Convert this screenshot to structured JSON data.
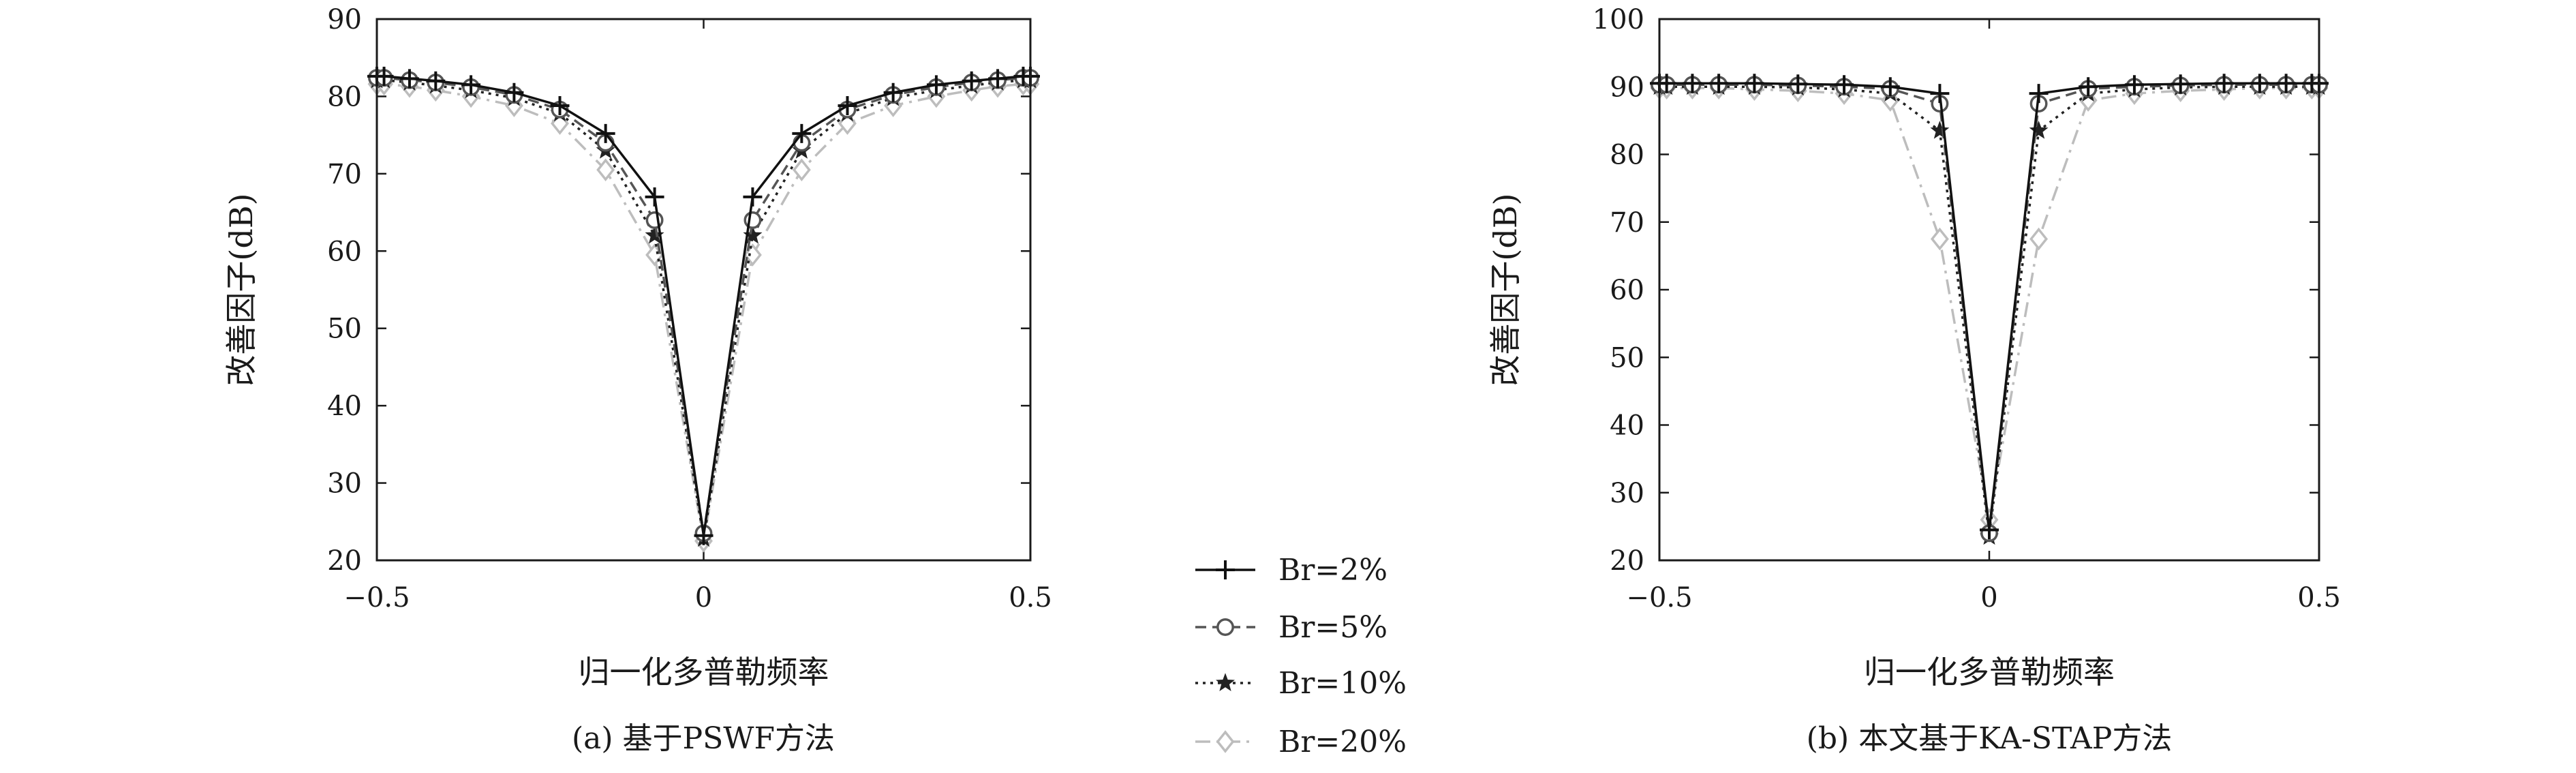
{
  "chart_data": [
    {
      "type": "line",
      "caption": "(a) 基于PSWF方法",
      "xlabel": "归一化多普勒频率",
      "ylabel": "改善因子(dB)",
      "xlim": [
        -0.5,
        0.5
      ],
      "ylim": [
        20,
        90
      ],
      "xticks": [
        -0.5,
        0,
        0.5
      ],
      "xtick_labels": [
        "−0.5",
        "0",
        "0.5"
      ],
      "yticks": [
        20,
        30,
        40,
        50,
        60,
        70,
        80,
        90
      ],
      "ytick_labels": [
        "20",
        "30",
        "40",
        "50",
        "60",
        "70",
        "80",
        "90"
      ],
      "grid": false,
      "x": [
        -0.5,
        -0.489,
        -0.45,
        -0.41,
        -0.356,
        -0.29,
        -0.22,
        -0.15,
        -0.075,
        0,
        0.075,
        0.15,
        0.22,
        0.29,
        0.356,
        0.41,
        0.45,
        0.489,
        0.5
      ],
      "series": [
        {
          "name": "Br=2%",
          "values": [
            82.6,
            82.6,
            82.3,
            82.0,
            81.5,
            80.5,
            78.8,
            75.2,
            67.0,
            23.2,
            67.0,
            75.2,
            78.8,
            80.5,
            81.5,
            82.0,
            82.3,
            82.6,
            82.6
          ]
        },
        {
          "name": "Br=5%",
          "values": [
            82.4,
            82.4,
            82.1,
            81.8,
            81.2,
            80.2,
            78.3,
            74.0,
            64.0,
            23.5,
            64.0,
            74.0,
            78.3,
            80.2,
            81.2,
            81.8,
            82.1,
            82.4,
            82.4
          ]
        },
        {
          "name": "Br=10%",
          "values": [
            82.1,
            82.1,
            81.8,
            81.4,
            80.8,
            79.8,
            77.8,
            73.0,
            62.0,
            22.8,
            62.0,
            73.0,
            77.8,
            79.8,
            80.8,
            81.4,
            81.8,
            82.1,
            82.1
          ]
        },
        {
          "name": "Br=20%",
          "values": [
            81.6,
            81.6,
            81.3,
            80.8,
            80.0,
            78.8,
            76.5,
            70.5,
            59.5,
            22.5,
            59.5,
            70.5,
            76.5,
            78.8,
            80.0,
            80.8,
            81.3,
            81.6,
            81.6
          ]
        }
      ]
    },
    {
      "type": "line",
      "caption": "(b) 本文基于KA-STAP方法",
      "xlabel": "归一化多普勒频率",
      "ylabel": "改善因子(dB)",
      "xlim": [
        -0.5,
        0.5
      ],
      "ylim": [
        20,
        100
      ],
      "xticks": [
        -0.5,
        0,
        0.5
      ],
      "xtick_labels": [
        "−0.5",
        "0",
        "0.5"
      ],
      "yticks": [
        20,
        30,
        40,
        50,
        60,
        70,
        80,
        90,
        100
      ],
      "ytick_labels": [
        "20",
        "30",
        "40",
        "50",
        "60",
        "70",
        "80",
        "90",
        "100"
      ],
      "grid": false,
      "x": [
        -0.5,
        -0.489,
        -0.45,
        -0.41,
        -0.356,
        -0.29,
        -0.22,
        -0.15,
        -0.075,
        0,
        0.075,
        0.15,
        0.22,
        0.29,
        0.356,
        0.41,
        0.45,
        0.489,
        0.5
      ],
      "series": [
        {
          "name": "Br=2%",
          "values": [
            90.5,
            90.5,
            90.5,
            90.5,
            90.5,
            90.4,
            90.3,
            90.0,
            89.0,
            24.5,
            89.0,
            90.0,
            90.3,
            90.4,
            90.5,
            90.5,
            90.5,
            90.5,
            90.5
          ]
        },
        {
          "name": "Br=5%",
          "values": [
            90.3,
            90.3,
            90.3,
            90.3,
            90.3,
            90.2,
            90.0,
            89.7,
            87.5,
            24.0,
            87.5,
            89.7,
            90.0,
            90.2,
            90.3,
            90.3,
            90.3,
            90.3,
            90.3
          ]
        },
        {
          "name": "Br=10%",
          "values": [
            90.0,
            90.0,
            90.0,
            90.0,
            90.0,
            89.9,
            89.6,
            89.0,
            83.5,
            23.5,
            83.5,
            89.0,
            89.6,
            89.9,
            90.0,
            90.0,
            90.0,
            90.0,
            90.0
          ]
        },
        {
          "name": "Br=20%",
          "values": [
            89.8,
            89.8,
            89.8,
            89.8,
            89.6,
            89.4,
            89.0,
            88.0,
            67.5,
            26.0,
            67.5,
            88.0,
            89.0,
            89.4,
            89.6,
            89.8,
            89.8,
            89.8,
            89.8
          ]
        }
      ]
    }
  ],
  "legend": [
    {
      "label": "Br=2%",
      "color": "#111111",
      "dash": "solid",
      "marker": "plus"
    },
    {
      "label": "Br=5%",
      "color": "#555555",
      "dash": "dashed",
      "marker": "circle"
    },
    {
      "label": "Br=10%",
      "color": "#222222",
      "dash": "dotted",
      "marker": "star"
    },
    {
      "label": "Br=20%",
      "color": "#bdbdbd",
      "dash": "dashdot",
      "marker": "diamond"
    }
  ]
}
